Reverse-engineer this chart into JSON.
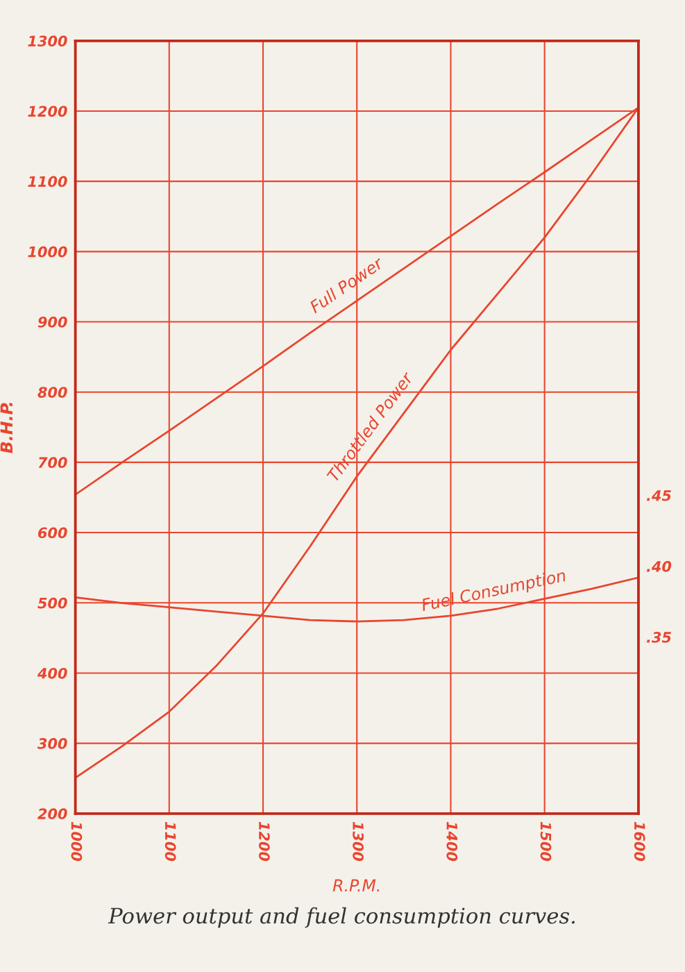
{
  "chart_data": {
    "type": "line",
    "xlabel": "R.P.M.",
    "ylabel": "B.H.P.",
    "x": [
      1000,
      1050,
      1100,
      1150,
      1200,
      1250,
      1300,
      1350,
      1400,
      1450,
      1500,
      1550,
      1600
    ],
    "series": [
      {
        "name": "Full Power",
        "color": "#e8452f",
        "values": [
          654,
          700,
          745,
          791,
          837,
          884,
          930,
          976,
          1022,
          1068,
          1113,
          1159,
          1205
        ]
      },
      {
        "name": "Throttled Power",
        "color": "#e8452f",
        "values": [
          251,
          296,
          345,
          410,
          485,
          580,
          680,
          770,
          860,
          940,
          1020,
          1110,
          1205
        ]
      },
      {
        "name": "Fuel Consumption",
        "color": "#e8452f",
        "axis": "y2",
        "values": [
          0.378,
          0.374,
          0.371,
          0.368,
          0.365,
          0.362,
          0.361,
          0.362,
          0.365,
          0.37,
          0.377,
          0.384,
          0.392
        ]
      }
    ],
    "xlim": [
      1000,
      1600
    ],
    "xticks": [
      1000,
      1100,
      1200,
      1300,
      1400,
      1500,
      1600
    ],
    "ylim": [
      200,
      1300
    ],
    "yticks": [
      200,
      300,
      400,
      500,
      600,
      700,
      800,
      900,
      1000,
      1100,
      1200,
      1300
    ],
    "y2lim": [
      0.2255,
      0.7706
    ],
    "y2ticks": [
      {
        "value": 0.35,
        "label": ".35"
      },
      {
        "value": 0.4,
        "label": ".40"
      },
      {
        "value": 0.45,
        "label": ".45"
      }
    ],
    "grid": true,
    "legend": false,
    "marker": "none",
    "line_style": "solid",
    "annotations": [
      "Power output and fuel consumption curves."
    ]
  }
}
